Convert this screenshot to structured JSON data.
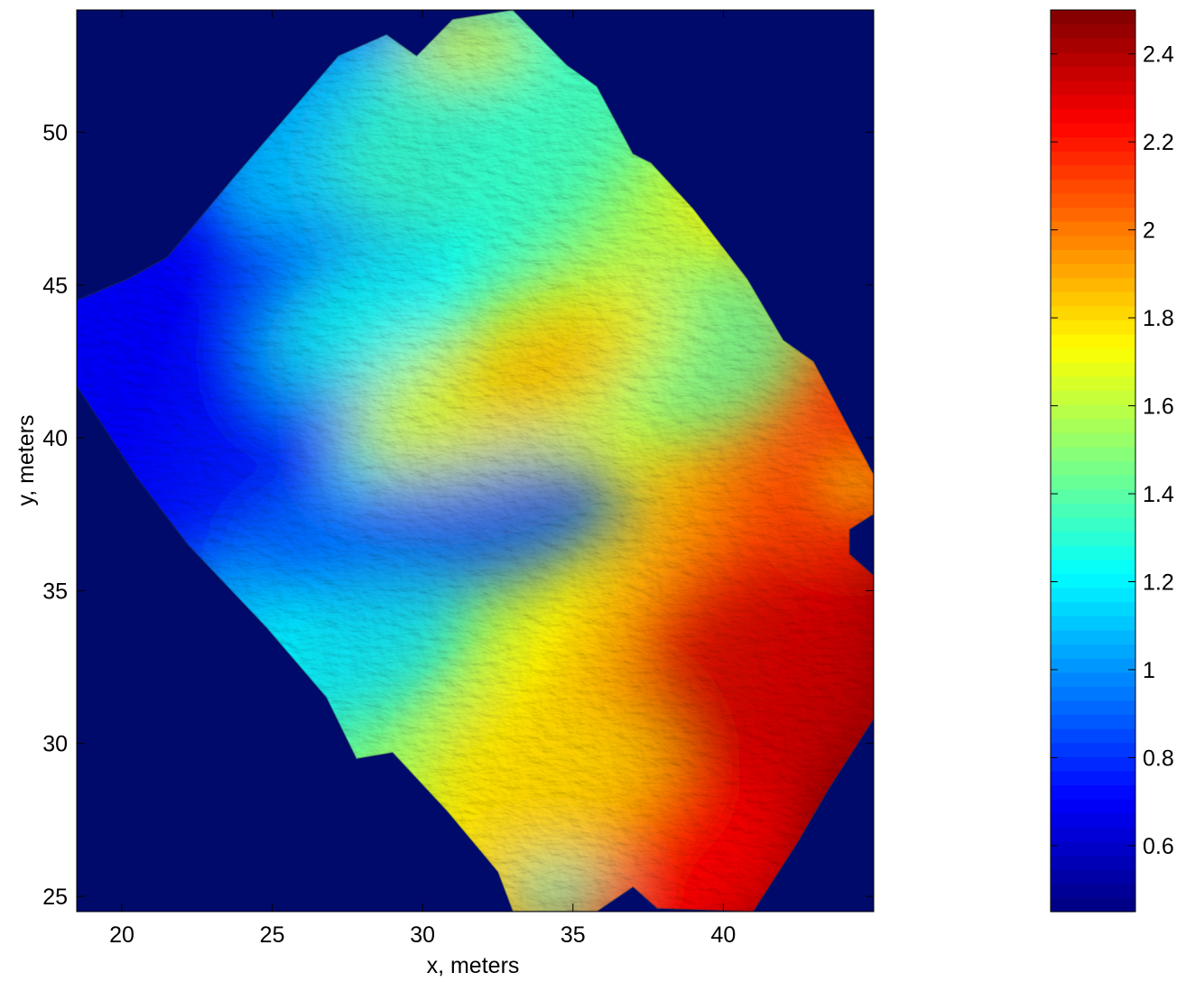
{
  "chart_data": {
    "type": "heatmap",
    "title": "",
    "xlabel": "x, meters",
    "ylabel": "y, meters",
    "xlim": [
      18.5,
      45
    ],
    "ylim": [
      24.5,
      54
    ],
    "xticks": [
      20,
      25,
      30,
      35,
      40
    ],
    "yticks": [
      25,
      30,
      35,
      40,
      45,
      50
    ],
    "background_color": "#000a6b",
    "colormap": "jet",
    "colorbar": {
      "clim": [
        0.45,
        2.5
      ],
      "ticks": [
        0.6,
        0.8,
        1,
        1.2,
        1.4,
        1.6,
        1.8,
        2,
        2.2,
        2.4
      ],
      "placement": "right"
    },
    "surface": {
      "outline": [
        [
          33.0,
          54.0
        ],
        [
          31.0,
          53.7
        ],
        [
          29.8,
          52.5
        ],
        [
          28.8,
          53.2
        ],
        [
          27.2,
          52.5
        ],
        [
          23.7,
          48.5
        ],
        [
          21.5,
          45.9
        ],
        [
          20.2,
          45.2
        ],
        [
          18.5,
          44.5
        ],
        [
          18.5,
          41.7
        ],
        [
          20.5,
          38.7
        ],
        [
          22.2,
          36.5
        ],
        [
          24.8,
          33.8
        ],
        [
          26.8,
          31.5
        ],
        [
          27.8,
          29.5
        ],
        [
          29.0,
          29.7
        ],
        [
          30.8,
          27.8
        ],
        [
          32.5,
          25.8
        ],
        [
          33.0,
          24.5
        ],
        [
          35.8,
          24.5
        ],
        [
          37.0,
          25.3
        ],
        [
          37.8,
          24.6
        ],
        [
          41.0,
          24.5
        ],
        [
          42.5,
          26.8
        ],
        [
          43.5,
          28.5
        ],
        [
          45.0,
          30.8
        ],
        [
          45.0,
          35.5
        ],
        [
          44.2,
          36.2
        ],
        [
          44.2,
          37.0
        ],
        [
          45.0,
          37.5
        ],
        [
          45.0,
          38.8
        ],
        [
          43.0,
          42.5
        ],
        [
          42.0,
          43.2
        ],
        [
          40.8,
          45.2
        ],
        [
          39.0,
          47.5
        ],
        [
          37.6,
          49.0
        ],
        [
          37.0,
          49.3
        ],
        [
          35.8,
          51.5
        ],
        [
          34.8,
          52.2
        ]
      ],
      "features": [
        {
          "kind": "base_gradient",
          "from": [
            20.0,
            40.0
          ],
          "to": [
            44.0,
            30.0
          ],
          "z_from": 0.7,
          "z_to": 2.45
        },
        {
          "kind": "blob",
          "center": [
            22.5,
            40.0
          ],
          "rx": 5.5,
          "ry": 3.5,
          "rotation_deg": -25,
          "z": 0.7
        },
        {
          "kind": "blob",
          "center": [
            30.5,
            37.0
          ],
          "rx": 6.5,
          "ry": 2.2,
          "rotation_deg": -10,
          "z": 0.85
        },
        {
          "kind": "blob",
          "center": [
            27.0,
            50.0
          ],
          "rx": 5.0,
          "ry": 3.0,
          "rotation_deg": -35,
          "z": 1.15
        },
        {
          "kind": "blob",
          "center": [
            32.5,
            50.5
          ],
          "rx": 6.0,
          "ry": 3.5,
          "rotation_deg": -30,
          "z": 1.35
        },
        {
          "kind": "blob",
          "center": [
            31.5,
            53.0
          ],
          "rx": 2.2,
          "ry": 1.2,
          "rotation_deg": 0,
          "z": 1.75
        },
        {
          "kind": "blob",
          "center": [
            39.0,
            43.0
          ],
          "rx": 4.0,
          "ry": 3.0,
          "rotation_deg": -20,
          "z": 1.4
        },
        {
          "kind": "blob",
          "center": [
            27.5,
            43.5
          ],
          "rx": 3.0,
          "ry": 2.0,
          "rotation_deg": -30,
          "z": 1.25
        },
        {
          "kind": "blob",
          "center": [
            33.0,
            42.0
          ],
          "rx": 6.0,
          "ry": 2.4,
          "rotation_deg": -25,
          "z": 1.75
        },
        {
          "kind": "blob",
          "center": [
            34.0,
            42.3
          ],
          "rx": 2.8,
          "ry": 1.3,
          "rotation_deg": -25,
          "z": 1.9
        },
        {
          "kind": "blob",
          "center": [
            28.0,
            33.0
          ],
          "rx": 3.5,
          "ry": 2.0,
          "rotation_deg": -20,
          "z": 1.15
        },
        {
          "kind": "blob",
          "center": [
            34.5,
            28.5
          ],
          "rx": 4.0,
          "ry": 3.0,
          "rotation_deg": -20,
          "z": 1.8
        },
        {
          "kind": "blob",
          "center": [
            41.5,
            32.0
          ],
          "rx": 4.0,
          "ry": 3.5,
          "rotation_deg": -30,
          "z": 2.35
        },
        {
          "kind": "blob",
          "center": [
            39.5,
            26.5
          ],
          "rx": 3.0,
          "ry": 2.5,
          "rotation_deg": -20,
          "z": 2.25
        },
        {
          "kind": "blob",
          "center": [
            34.5,
            25.0
          ],
          "rx": 1.8,
          "ry": 1.0,
          "rotation_deg": 0,
          "z": 1.25
        },
        {
          "kind": "blob",
          "center": [
            44.5,
            38.5
          ],
          "rx": 1.5,
          "ry": 1.5,
          "rotation_deg": 0,
          "z": 1.8
        }
      ]
    }
  }
}
